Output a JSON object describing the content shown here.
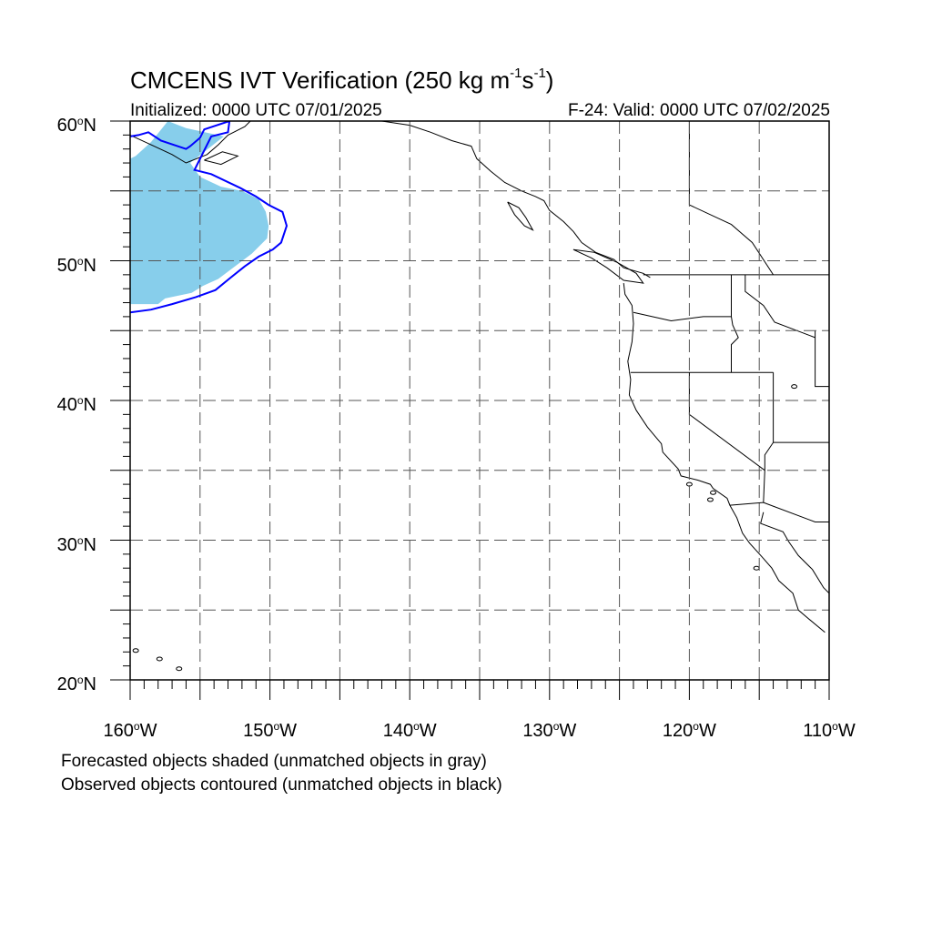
{
  "title": {
    "main": "CMCENS IVT Verification (250 kg m",
    "exp1": "-1",
    "mid": "s",
    "exp2": "-1",
    "close": ")"
  },
  "subtitle": {
    "left": "Initialized: 0000 UTC 07/01/2025",
    "right": "F-24: Valid: 0000 UTC 07/02/2025"
  },
  "map": {
    "extent": {
      "lon_min": -160,
      "lon_max": -110,
      "lat_min": 20,
      "lat_max": 60
    },
    "gridlines": "dashed",
    "lat_ticks": [
      {
        "num": "20",
        "deg": "o",
        "hem": "N"
      },
      {
        "num": "30",
        "deg": "o",
        "hem": "N"
      },
      {
        "num": "40",
        "deg": "o",
        "hem": "N"
      },
      {
        "num": "50",
        "deg": "o",
        "hem": "N"
      },
      {
        "num": "60",
        "deg": "o",
        "hem": "N"
      }
    ],
    "lon_ticks": [
      {
        "num": "160",
        "deg": "o",
        "hem": "W"
      },
      {
        "num": "150",
        "deg": "o",
        "hem": "W"
      },
      {
        "num": "140",
        "deg": "o",
        "hem": "W"
      },
      {
        "num": "130",
        "deg": "o",
        "hem": "W"
      },
      {
        "num": "120",
        "deg": "o",
        "hem": "W"
      },
      {
        "num": "110",
        "deg": "o",
        "hem": "W"
      }
    ],
    "colors": {
      "forecast_fill": "#87ceeb",
      "observed_contour": "#0000ff",
      "coastline": "#000000"
    },
    "forecast_object": [
      [
        -160,
        46.9
      ],
      [
        -158,
        46.9
      ],
      [
        -157.5,
        47.3
      ],
      [
        -155.6,
        47.7
      ],
      [
        -154.8,
        48.2
      ],
      [
        -153.7,
        48.7
      ],
      [
        -152.5,
        49.6
      ],
      [
        -151.3,
        50.5
      ],
      [
        -150.2,
        51.6
      ],
      [
        -150.1,
        52.5
      ],
      [
        -150.3,
        53.5
      ],
      [
        -150.8,
        54.4
      ],
      [
        -152,
        55
      ],
      [
        -153.5,
        55.3
      ],
      [
        -155,
        56
      ],
      [
        -155.7,
        57
      ],
      [
        -153.3,
        58.9
      ],
      [
        -156,
        59.5
      ],
      [
        -157.3,
        60
      ],
      [
        -158.5,
        58.5
      ],
      [
        -159.6,
        57.5
      ],
      [
        -160,
        57.3
      ]
    ],
    "observed_object": [
      [
        -160,
        46.3
      ],
      [
        -158.5,
        46.5
      ],
      [
        -157,
        46.9
      ],
      [
        -155.3,
        47.4
      ],
      [
        -153.9,
        47.9
      ],
      [
        -152.8,
        48.8
      ],
      [
        -151.8,
        49.6
      ],
      [
        -150.8,
        50.3
      ],
      [
        -149.8,
        50.8
      ],
      [
        -149.2,
        51.3
      ],
      [
        -148.8,
        52.5
      ],
      [
        -149.1,
        53.5
      ],
      [
        -150.1,
        54
      ],
      [
        -151,
        54.6
      ],
      [
        -152.1,
        55.2
      ],
      [
        -154.2,
        56.2
      ],
      [
        -155.4,
        56.5
      ],
      [
        -155.1,
        57.1
      ],
      [
        -154.2,
        58.9
      ],
      [
        -153,
        59.2
      ],
      [
        -152.9,
        60
      ],
      [
        -154.7,
        59.4
      ],
      [
        -155,
        58.8
      ],
      [
        -155.7,
        58.2
      ],
      [
        -156,
        58
      ],
      [
        -157.8,
        58.6
      ],
      [
        -158.7,
        59.2
      ],
      [
        -159.4,
        59
      ],
      [
        -160,
        58.9
      ]
    ]
  },
  "notes": {
    "line1": "Forecasted objects shaded (unmatched objects in gray)",
    "line2": "Observed objects contoured (unmatched objects in black)"
  }
}
